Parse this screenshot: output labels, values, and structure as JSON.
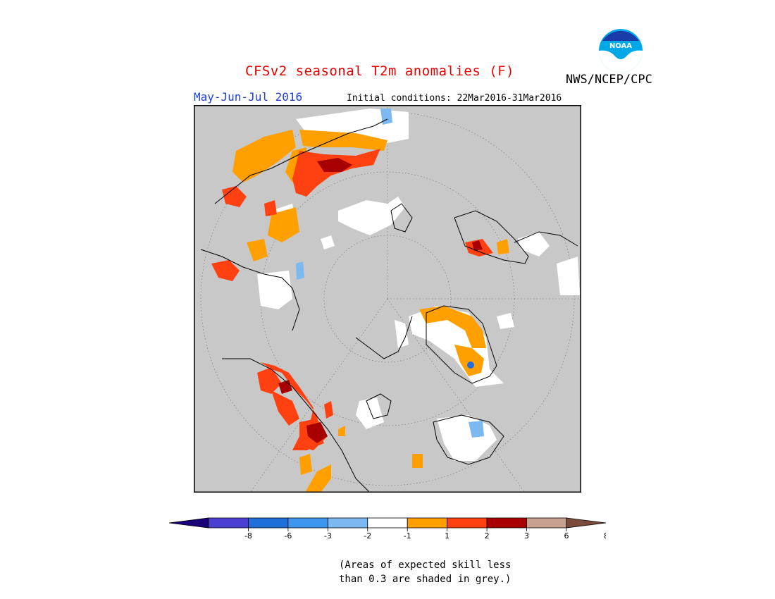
{
  "header": {
    "title": "CFSv2 seasonal T2m anomalies (F)",
    "period": "May-Jun-Jul 2016",
    "initial_conditions": "Initial conditions: 22Mar2016-31Mar2016",
    "org": "NWS/NCEP/CPC",
    "logo_text": "NOAA"
  },
  "map": {
    "projection": "north-polar-stereographic",
    "background_color": "#c8c8c8",
    "coastline_color": "#000000"
  },
  "legend": {
    "colors": [
      "#1a0078",
      "#4a3fd0",
      "#1f6fd9",
      "#3f96ee",
      "#7bb9f0",
      "#ffffff",
      "#ffa000",
      "#ff4010",
      "#a80000",
      "#c8a090",
      "#7a4a3a"
    ],
    "ticks": [
      "-8",
      "-6",
      "-3",
      "-2",
      "-1",
      "1",
      "2",
      "3",
      "6",
      "8"
    ]
  },
  "note": {
    "line1": "(Areas of expected skill less",
    "line2": "than 0.3 are shaded in grey.)"
  }
}
